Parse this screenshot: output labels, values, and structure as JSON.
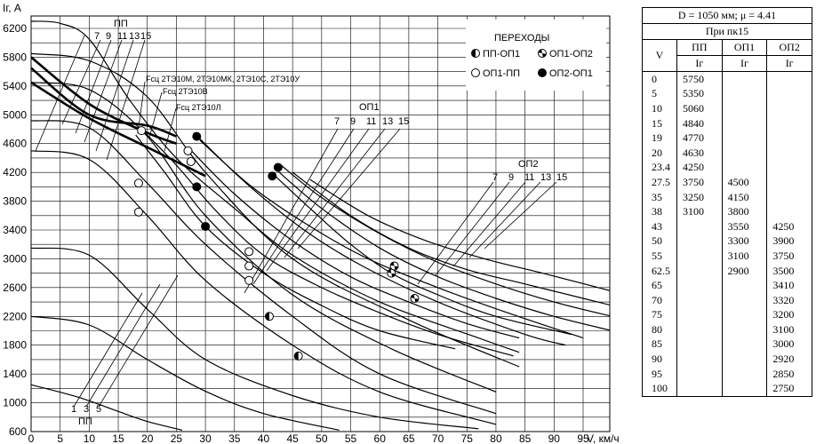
{
  "chart_data": {
    "type": "line",
    "ylabel": "Iг, А",
    "xlabel": "V, км/ч",
    "xlim": [
      0,
      95
    ],
    "ylim": [
      600,
      6400
    ],
    "x_ticks": [
      0,
      5,
      10,
      15,
      20,
      25,
      30,
      35,
      40,
      45,
      50,
      55,
      60,
      65,
      70,
      75,
      80,
      85,
      90,
      95
    ],
    "y_ticks": [
      600,
      1000,
      1400,
      1800,
      2200,
      2600,
      3000,
      3400,
      3800,
      4200,
      4600,
      5000,
      5400,
      5800,
      6200
    ],
    "grid": true,
    "annotations": {
      "pp_top": "ПП",
      "pp_top_positions": [
        "7",
        "9",
        "11",
        "13",
        "15"
      ],
      "pp_bottom": "ПП",
      "pp_bottom_positions": [
        "1",
        "3",
        "5"
      ],
      "op1": "ОП1",
      "op1_positions": [
        "7",
        "9",
        "11",
        "13",
        "15"
      ],
      "op2": "ОП2",
      "op2_positions": [
        "7",
        "9",
        "11",
        "13",
        "15"
      ],
      "fsc1": "Fсц 2ТЭ10М, 2ТЭ10МК, 2ТЭ10С, 2ТЭ10У",
      "fsc2": "Fсц 2ТЭ10В",
      "fsc3": "Fсц 2ТЭ10Л"
    },
    "legend": {
      "title": "ПЕРЕХОДЫ",
      "placement": "top-right",
      "items": [
        {
          "label": "ПП-ОП1",
          "marker": "half"
        },
        {
          "label": "ОП1-ОП2",
          "marker": "cross"
        },
        {
          "label": "ОП1-ПП",
          "marker": "open"
        },
        {
          "label": "ОП2-ОП1",
          "marker": "filled"
        }
      ]
    },
    "series": [
      {
        "group": "pp-low",
        "x": [
          0,
          8,
          15,
          20,
          26
        ],
        "y": [
          1250,
          1080,
          880,
          740,
          620
        ]
      },
      {
        "group": "pp-low",
        "x": [
          0,
          10,
          20,
          30,
          40,
          53
        ],
        "y": [
          2200,
          2080,
          1600,
          1160,
          850,
          620
        ]
      },
      {
        "group": "pp-low",
        "x": [
          0,
          10,
          20,
          30,
          45,
          60,
          77
        ],
        "y": [
          3150,
          3050,
          2300,
          1600,
          1100,
          800,
          640
        ]
      },
      {
        "group": "pp-high",
        "x": [
          0,
          10,
          20,
          30,
          45,
          60,
          80
        ],
        "y": [
          4500,
          4380,
          3600,
          2700,
          1800,
          1150,
          700
        ]
      },
      {
        "group": "pp-high",
        "x": [
          0,
          10,
          20,
          30,
          45,
          60,
          80
        ],
        "y": [
          4920,
          4820,
          4050,
          3200,
          2200,
          1400,
          850
        ]
      },
      {
        "group": "pp-high",
        "x": [
          0,
          10,
          20,
          30,
          45,
          62,
          80
        ],
        "y": [
          5450,
          5350,
          4700,
          3600,
          2500,
          1750,
          1150
        ]
      },
      {
        "group": "pp-high",
        "x": [
          0,
          10,
          20,
          30,
          45,
          65,
          84
        ],
        "y": [
          5850,
          5750,
          5250,
          4200,
          3000,
          2150,
          1500
        ]
      },
      {
        "group": "pp-high",
        "x": [
          0,
          5,
          10,
          17,
          25,
          35,
          45,
          60,
          77,
          84
        ],
        "y": [
          6300,
          6270,
          6050,
          5200,
          4400,
          3700,
          3050,
          2400,
          1900,
          1700
        ]
      },
      {
        "group": "op1",
        "x": [
          18,
          23,
          30,
          40,
          50,
          60,
          73
        ],
        "y": [
          4720,
          4200,
          3450,
          2800,
          2350,
          2000,
          1750
        ]
      },
      {
        "group": "op1",
        "x": [
          19,
          25,
          32,
          40,
          50,
          60,
          70,
          83
        ],
        "y": [
          4800,
          4300,
          3650,
          3050,
          2600,
          2250,
          1950,
          1650
        ]
      },
      {
        "group": "op1",
        "x": [
          27,
          35,
          45,
          55,
          65,
          75,
          84
        ],
        "y": [
          4550,
          3900,
          3250,
          2750,
          2400,
          2100,
          1900
        ]
      },
      {
        "group": "op1",
        "x": [
          28,
          37,
          47,
          57,
          70,
          85,
          92
        ],
        "y": [
          4750,
          4050,
          3400,
          2900,
          2400,
          1950,
          1800
        ]
      },
      {
        "group": "op1",
        "x": [
          29,
          38,
          48,
          58,
          70,
          82,
          95
        ],
        "y": [
          4650,
          4000,
          3450,
          3000,
          2600,
          2250,
          1900
        ]
      },
      {
        "group": "op2",
        "x": [
          42,
          48,
          55,
          62,
          70,
          80,
          93
        ],
        "y": [
          4150,
          3700,
          3200,
          2800,
          2500,
          2200,
          1950
        ]
      },
      {
        "group": "op2",
        "x": [
          42,
          50,
          60,
          70,
          80,
          90,
          100
        ],
        "y": [
          4250,
          3700,
          3150,
          2750,
          2450,
          2200,
          2000
        ]
      },
      {
        "group": "op2",
        "x": [
          43,
          50,
          60,
          70,
          80,
          90,
          100
        ],
        "y": [
          4300,
          3850,
          3350,
          2950,
          2650,
          2400,
          2200
        ]
      },
      {
        "group": "op2",
        "x": [
          45,
          55,
          65,
          75,
          85,
          95,
          100
        ],
        "y": [
          4200,
          3600,
          3150,
          2850,
          2650,
          2450,
          2350
        ]
      },
      {
        "group": "op2",
        "x": [
          48,
          58,
          68,
          78,
          88,
          100
        ],
        "y": [
          4100,
          3600,
          3250,
          3000,
          2800,
          2550
        ]
      },
      {
        "group": "fsc",
        "x": [
          0,
          10,
          20,
          25
        ],
        "y": [
          5800,
          5150,
          4750,
          4600
        ]
      },
      {
        "group": "fsc",
        "x": [
          0,
          10,
          20,
          25
        ],
        "y": [
          5650,
          5000,
          4850,
          4700
        ]
      },
      {
        "group": "fsc",
        "x": [
          0,
          10,
          20,
          30
        ],
        "y": [
          5450,
          4950,
          4550,
          4150
        ]
      }
    ],
    "transition_points": [
      {
        "type": "open",
        "x": 18.5,
        "y": 3650
      },
      {
        "type": "open",
        "x": 18.5,
        "y": 4050
      },
      {
        "type": "open",
        "x": 19,
        "y": 4780
      },
      {
        "type": "open",
        "x": 27,
        "y": 4500
      },
      {
        "type": "open",
        "x": 27.5,
        "y": 4350
      },
      {
        "type": "open",
        "x": 37.5,
        "y": 3100
      },
      {
        "type": "open",
        "x": 37.5,
        "y": 2900
      },
      {
        "type": "open",
        "x": 37.5,
        "y": 2700
      },
      {
        "type": "filled",
        "x": 28.5,
        "y": 4700
      },
      {
        "type": "filled",
        "x": 28.5,
        "y": 4000
      },
      {
        "type": "filled",
        "x": 30,
        "y": 3450
      },
      {
        "type": "filled",
        "x": 41.5,
        "y": 4150
      },
      {
        "type": "filled",
        "x": 42.5,
        "y": 4270
      },
      {
        "type": "half",
        "x": 41,
        "y": 2200
      },
      {
        "type": "half",
        "x": 46,
        "y": 1650
      },
      {
        "type": "cross",
        "x": 62,
        "y": 2800
      },
      {
        "type": "cross",
        "x": 62.5,
        "y": 2900
      },
      {
        "type": "cross",
        "x": 66,
        "y": 2450
      }
    ]
  },
  "table": {
    "title": "D = 1050 мм; μ = 4.41",
    "subtitle": "При пк15",
    "v_header": "V",
    "col_headers": [
      "ПП",
      "ОП1",
      "ОП2"
    ],
    "col_units": [
      "Iг",
      "Iг",
      "Iг"
    ],
    "rows": [
      [
        "0",
        "5750",
        "",
        ""
      ],
      [
        "5",
        "5350",
        "",
        ""
      ],
      [
        "10",
        "5060",
        "",
        ""
      ],
      [
        "15",
        "4840",
        "",
        ""
      ],
      [
        "19",
        "4770",
        "",
        ""
      ],
      [
        "20",
        "4630",
        "",
        ""
      ],
      [
        "23.4",
        "4250",
        "",
        ""
      ],
      [
        "27.5",
        "3750",
        "4500",
        ""
      ],
      [
        "35",
        "3250",
        "4150",
        ""
      ],
      [
        "38",
        "3100",
        "3800",
        ""
      ],
      [
        "43",
        "",
        "3550",
        "4250"
      ],
      [
        "50",
        "",
        "3300",
        "3900"
      ],
      [
        "55",
        "",
        "3100",
        "3750"
      ],
      [
        "62.5",
        "",
        "2900",
        "3500"
      ],
      [
        "65",
        "",
        "",
        "3410"
      ],
      [
        "70",
        "",
        "",
        "3320"
      ],
      [
        "75",
        "",
        "",
        "3200"
      ],
      [
        "80",
        "",
        "",
        "3100"
      ],
      [
        "85",
        "",
        "",
        "3000"
      ],
      [
        "90",
        "",
        "",
        "2920"
      ],
      [
        "95",
        "",
        "",
        "2850"
      ],
      [
        "100",
        "",
        "",
        "2750"
      ]
    ]
  }
}
